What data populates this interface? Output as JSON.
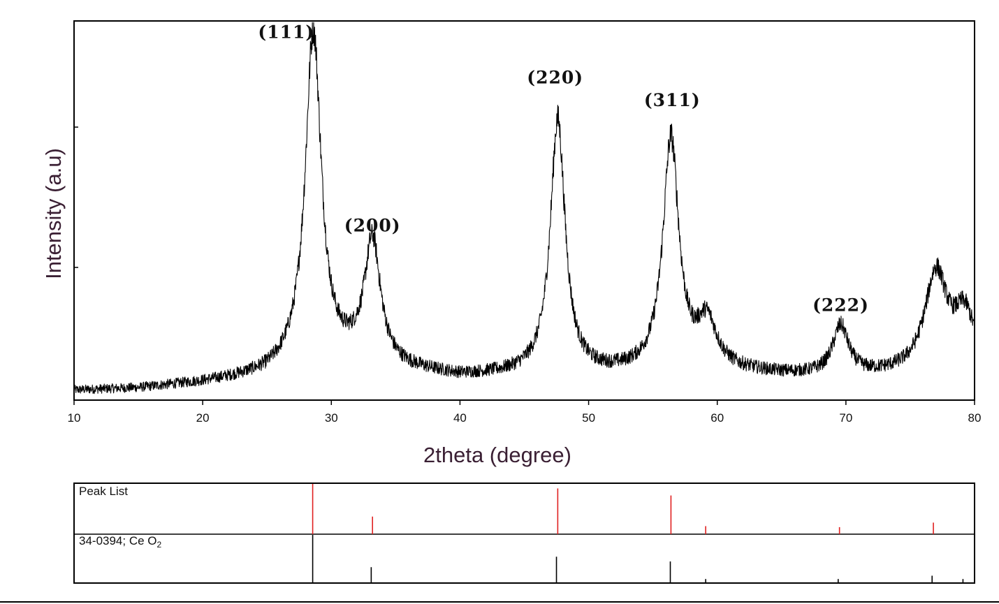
{
  "chart_data": [
    {
      "type": "line",
      "xlabel": "2theta (degree)",
      "ylabel": "Intensity (a.u)",
      "xlim": [
        10,
        80
      ],
      "ylim": [
        0,
        100
      ],
      "x_ticks": [
        10,
        20,
        30,
        40,
        50,
        60,
        70,
        80
      ],
      "y_ticks": [
        35,
        72
      ],
      "x_tick_labels": [
        "10",
        "20",
        "30",
        "40",
        "50",
        "60",
        "70",
        "80"
      ],
      "grid": false,
      "series_color": "#000000",
      "profile": {
        "baseline": [
          [
            10,
            2.5
          ],
          [
            15,
            3
          ],
          [
            20,
            4.5
          ],
          [
            25,
            6.5
          ],
          [
            27.5,
            9
          ],
          [
            32,
            10
          ],
          [
            35,
            8
          ],
          [
            40,
            6
          ],
          [
            45,
            6.5
          ],
          [
            50,
            6.5
          ],
          [
            55,
            7
          ],
          [
            60,
            7.5
          ],
          [
            65,
            6.5
          ],
          [
            70,
            6
          ],
          [
            75,
            7
          ],
          [
            80,
            10
          ]
        ],
        "peaks": [
          {
            "center": 28.6,
            "height": 88,
            "width": 0.75
          },
          {
            "center": 33.2,
            "height": 32,
            "width": 0.75
          },
          {
            "center": 47.6,
            "height": 67,
            "width": 0.7
          },
          {
            "center": 56.4,
            "height": 61,
            "width": 0.75
          },
          {
            "center": 59.2,
            "height": 12,
            "width": 0.9
          },
          {
            "center": 69.6,
            "height": 13,
            "width": 0.75
          },
          {
            "center": 77.0,
            "height": 25,
            "width": 1.05
          },
          {
            "center": 79.2,
            "height": 12,
            "width": 0.9
          }
        ],
        "noise_amplitude": 1.6
      },
      "annotations": [
        {
          "text": "(111)",
          "x": 26.5,
          "y": 95.5
        },
        {
          "text": "(200)",
          "x": 33.2,
          "y": 44.5
        },
        {
          "text": "(220)",
          "x": 47.4,
          "y": 83.5
        },
        {
          "text": "(311)",
          "x": 56.5,
          "y": 77.5
        },
        {
          "text": "(222)",
          "x": 69.6,
          "y": 23.5
        }
      ]
    },
    {
      "type": "bar",
      "title": "Peak List",
      "color": "#e02020",
      "x": [
        28.55,
        33.2,
        47.6,
        56.4,
        59.1,
        69.5,
        76.8
      ],
      "values": [
        100,
        35,
        91,
        77,
        16,
        14,
        23
      ],
      "ylim": [
        0,
        100
      ]
    },
    {
      "type": "bar",
      "title_prefix": "34-0394; Ce O",
      "title_subscript": "2",
      "color": "#000000",
      "x": [
        28.55,
        33.1,
        47.5,
        56.35,
        59.1,
        69.4,
        76.7,
        79.1
      ],
      "values": [
        100,
        32,
        54,
        44,
        7,
        7,
        14,
        7
      ],
      "ylim": [
        0,
        100
      ]
    }
  ]
}
